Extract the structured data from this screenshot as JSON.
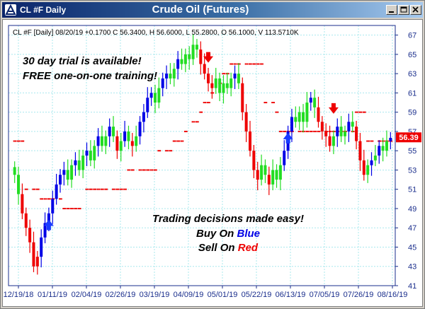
{
  "window": {
    "title_left": "CL #F Daily",
    "title_center": "Crude Oil (Futures)",
    "colors": {
      "titlebar_start": "#0a246a",
      "titlebar_end": "#a6caf0"
    }
  },
  "chart_data": {
    "type": "candlestick",
    "info_line": "CL #F [Daily] 08/20/19 +0.1700 C 56.3400, H 56.6000, L 55.2800, O 56.1000, V 113.5710K",
    "last_price_label": "56.39",
    "ylim": [
      41,
      68
    ],
    "y_ticks": [
      "67",
      "65",
      "63",
      "61",
      "59",
      "57",
      "55",
      "53",
      "51",
      "49",
      "47",
      "45",
      "43",
      "41"
    ],
    "x_ticks": [
      "12/19/18",
      "01/11/19",
      "02/04/19",
      "02/26/19",
      "03/19/19",
      "04/09/19",
      "05/01/19",
      "05/22/19",
      "06/13/19",
      "07/05/19",
      "07/26/19",
      "08/16/19"
    ],
    "grid": true,
    "annotations": {
      "promo_line1": "30 day trial is available!",
      "promo_line2": "FREE one-on-one training!",
      "tagline": "Trading decisions made easy!",
      "buy_prefix": "Buy On ",
      "buy_word": "Blue",
      "sell_prefix": "Sell On ",
      "sell_word": "Red"
    },
    "colors": {
      "up": "#0000e6",
      "neutral": "#22dd22",
      "down": "#ee0000",
      "grid": "#a8e8ee",
      "axis_text": "#1a2e8c"
    },
    "close_series": [
      52.5,
      50.5,
      48.5,
      47.0,
      45.5,
      43.0,
      44.0,
      46.0,
      47.5,
      48.5,
      50.0,
      51.5,
      52.5,
      53.0,
      52.0,
      53.5,
      54.0,
      53.0,
      54.5,
      55.0,
      54.0,
      55.5,
      56.5,
      55.5,
      56.5,
      57.5,
      56.5,
      55.0,
      56.0,
      57.0,
      56.0,
      55.5,
      56.5,
      58.0,
      59.0,
      60.5,
      61.0,
      60.0,
      61.5,
      62.5,
      63.0,
      62.5,
      63.5,
      64.5,
      64.0,
      65.0,
      64.5,
      66.0,
      65.5,
      64.0,
      63.0,
      62.0,
      61.5,
      62.5,
      61.0,
      62.0,
      61.5,
      62.5,
      63.0,
      62.0,
      59.0,
      57.0,
      55.0,
      53.0,
      52.0,
      53.5,
      52.5,
      51.5,
      53.0,
      52.0,
      53.5,
      55.0,
      57.0,
      58.5,
      58.0,
      59.0,
      58.0,
      60.0,
      60.5,
      59.5,
      58.0,
      57.0,
      56.5,
      55.5,
      56.5,
      57.5,
      56.5,
      57.0,
      58.0,
      57.5,
      56.0,
      54.0,
      52.5,
      53.5,
      54.0,
      54.5,
      55.5,
      55.0,
      56.0,
      56.34
    ],
    "marker_series": [
      {
        "name": "",
        "color": "#ee0000",
        "levels": [
          56,
          56,
          56,
          51,
          51,
          51,
          50,
          50,
          50,
          50,
          50,
          49,
          49,
          49,
          49,
          49,
          51,
          51,
          51,
          51,
          51,
          51,
          51,
          51,
          51,
          51,
          53,
          53,
          53,
          53,
          53,
          53,
          53,
          55,
          55,
          55,
          56,
          56,
          56,
          57,
          58,
          58,
          59,
          60,
          60,
          61,
          62,
          63,
          63,
          64,
          64,
          64,
          64,
          64,
          64,
          64,
          64,
          60,
          60,
          59,
          57,
          57,
          57,
          57,
          57,
          57,
          57,
          57,
          57,
          57,
          57,
          57,
          57,
          57,
          57,
          57,
          57,
          59,
          59,
          59,
          56,
          56,
          56,
          56,
          56,
          56
        ]
      }
    ],
    "arrows": [
      {
        "type": "buy",
        "index": 9,
        "price": 47.2
      },
      {
        "type": "sell",
        "index": 51,
        "price": 64.8
      },
      {
        "type": "buy",
        "index": 72,
        "price": 56.2
      },
      {
        "type": "sell",
        "index": 84,
        "price": 59.5
      }
    ]
  }
}
